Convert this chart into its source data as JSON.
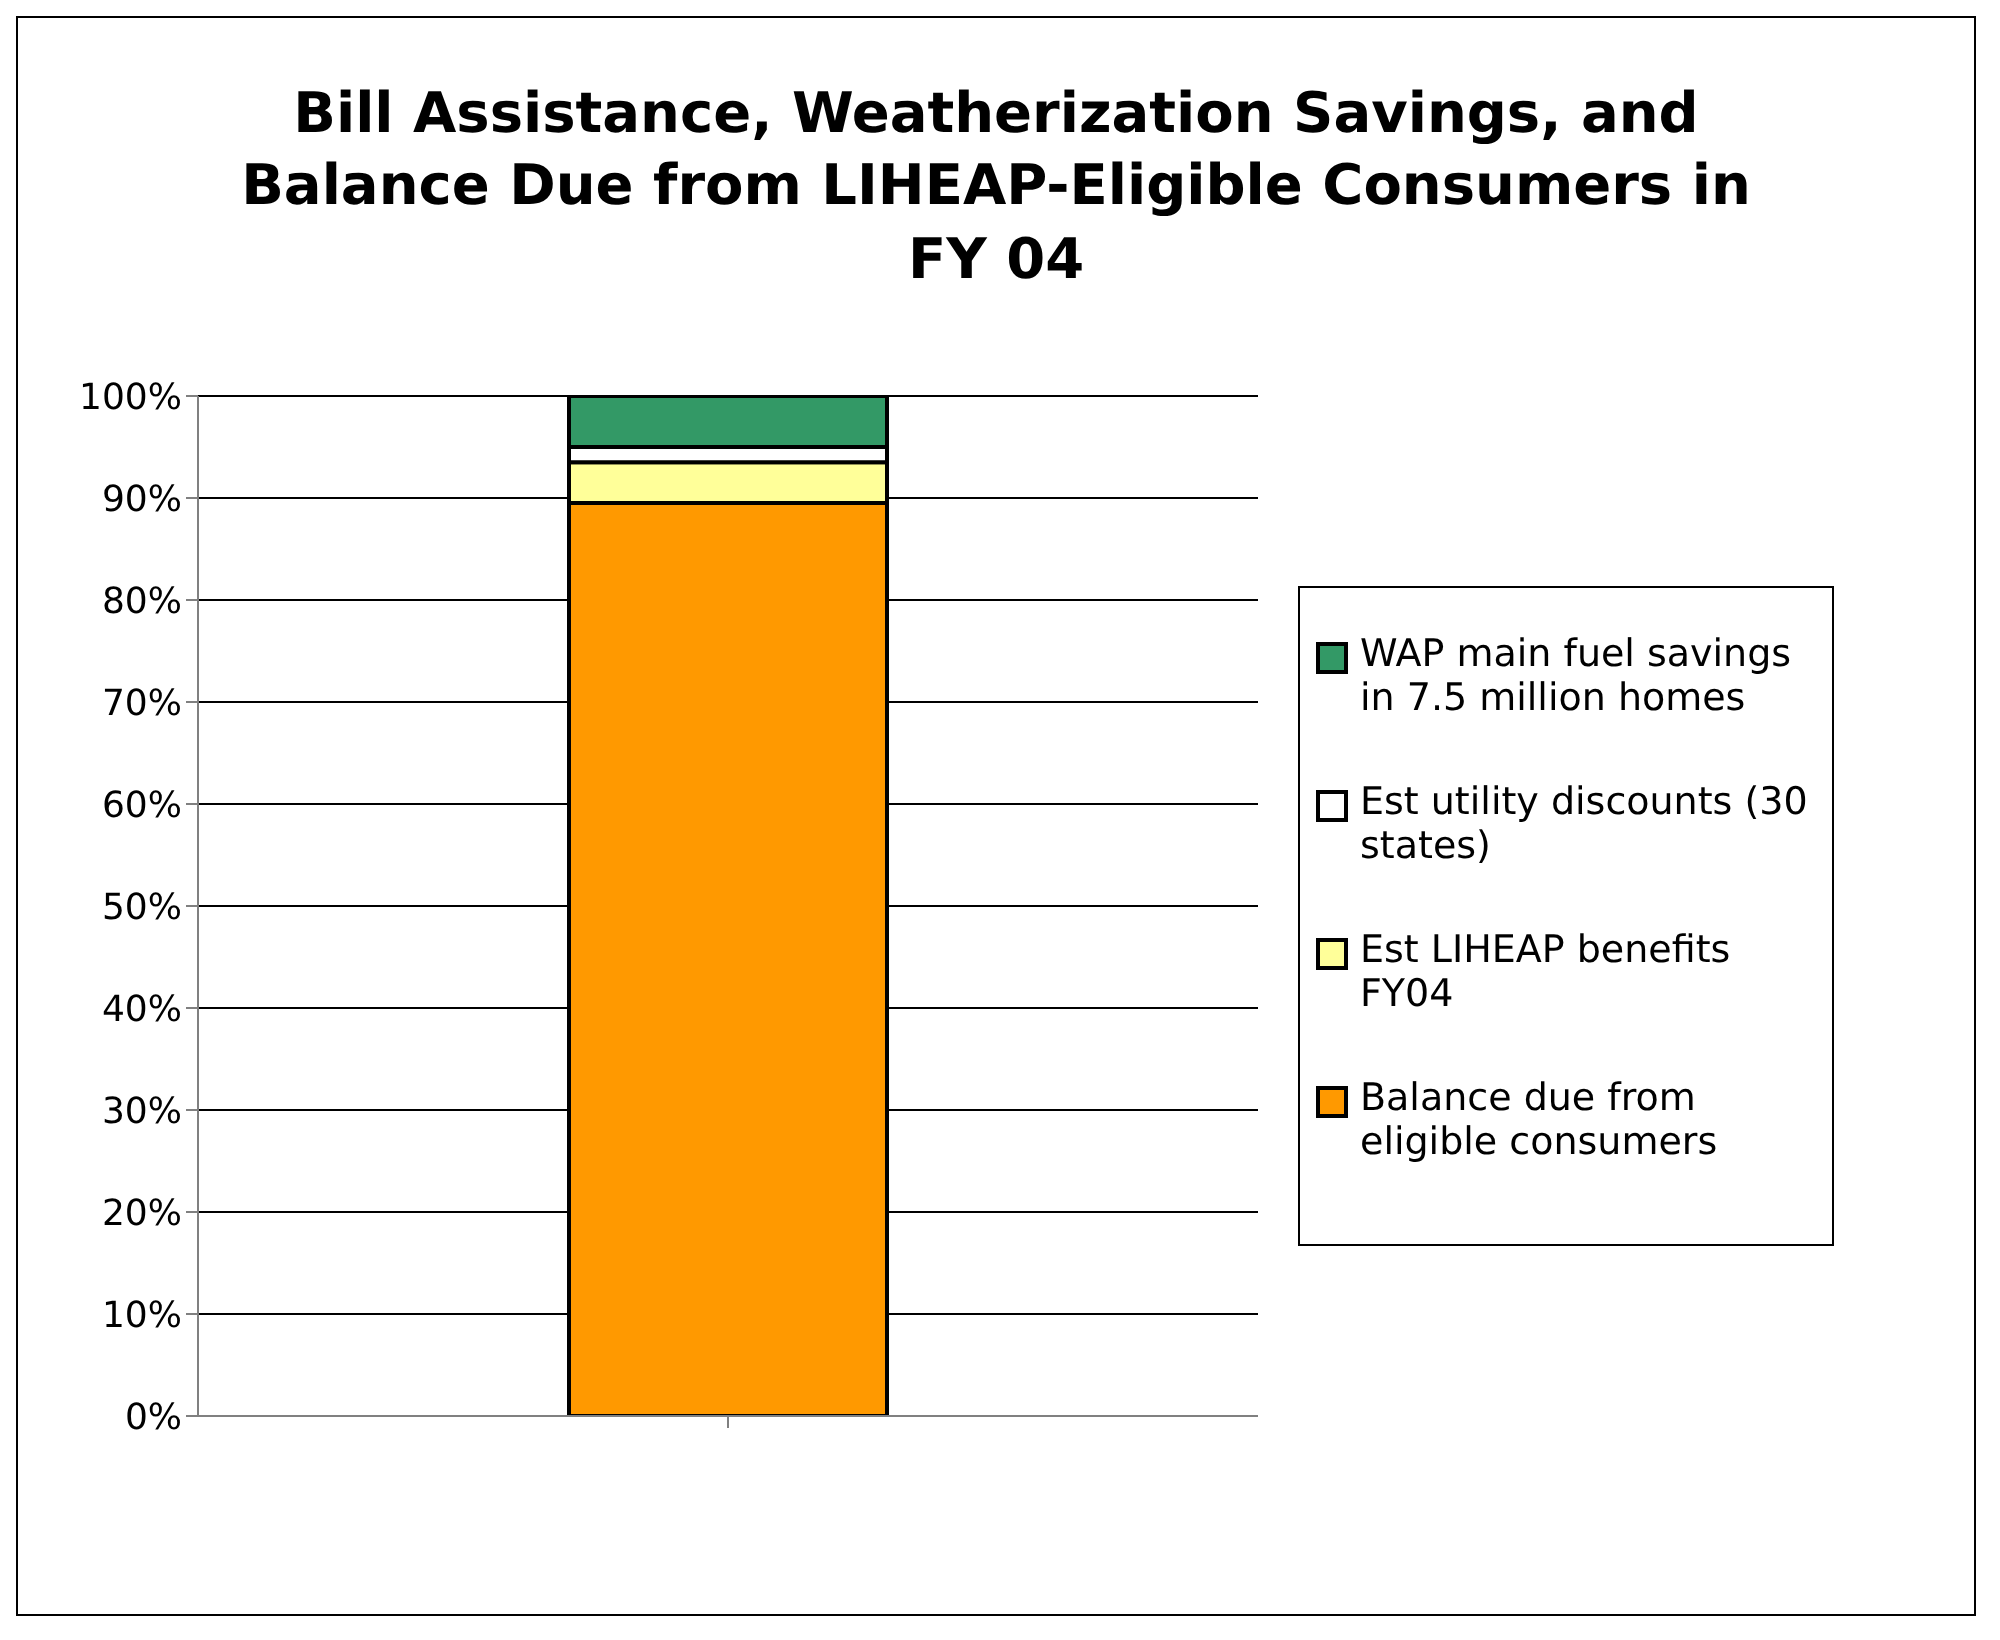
{
  "chart_data": {
    "type": "bar",
    "title": "Bill Assistance, Weatherization Savings, and Balance Due from LIHEAP-Eligible Consumers in FY 04",
    "categories": [
      null
    ],
    "stacked": true,
    "series": [
      {
        "name": "Balance due from eligible consumers",
        "color": "#ff9900",
        "values": [
          89.5
        ]
      },
      {
        "name": "Est LIHEAP benefits FY04",
        "color": "#ffff99",
        "values": [
          4
        ]
      },
      {
        "name": "Est utility discounts (30 states)",
        "color": "#ffffff",
        "values": [
          1.5
        ]
      },
      {
        "name": "WAP main fuel savings in 7.5 million homes",
        "color": "#339966",
        "values": [
          5
        ]
      }
    ],
    "ylim": [
      0,
      100
    ],
    "yticks": [
      {
        "value": 0,
        "label": "0%"
      },
      {
        "value": 10,
        "label": "10%"
      },
      {
        "value": 20,
        "label": "20%"
      },
      {
        "value": 30,
        "label": "30%"
      },
      {
        "value": 40,
        "label": "40%"
      },
      {
        "value": 50,
        "label": "50%"
      },
      {
        "value": 60,
        "label": "60%"
      },
      {
        "value": 70,
        "label": "70%"
      },
      {
        "value": 80,
        "label": "80%"
      },
      {
        "value": 90,
        "label": "90%"
      },
      {
        "value": 100,
        "label": "100%"
      }
    ],
    "grid": "y",
    "legend": "right"
  }
}
